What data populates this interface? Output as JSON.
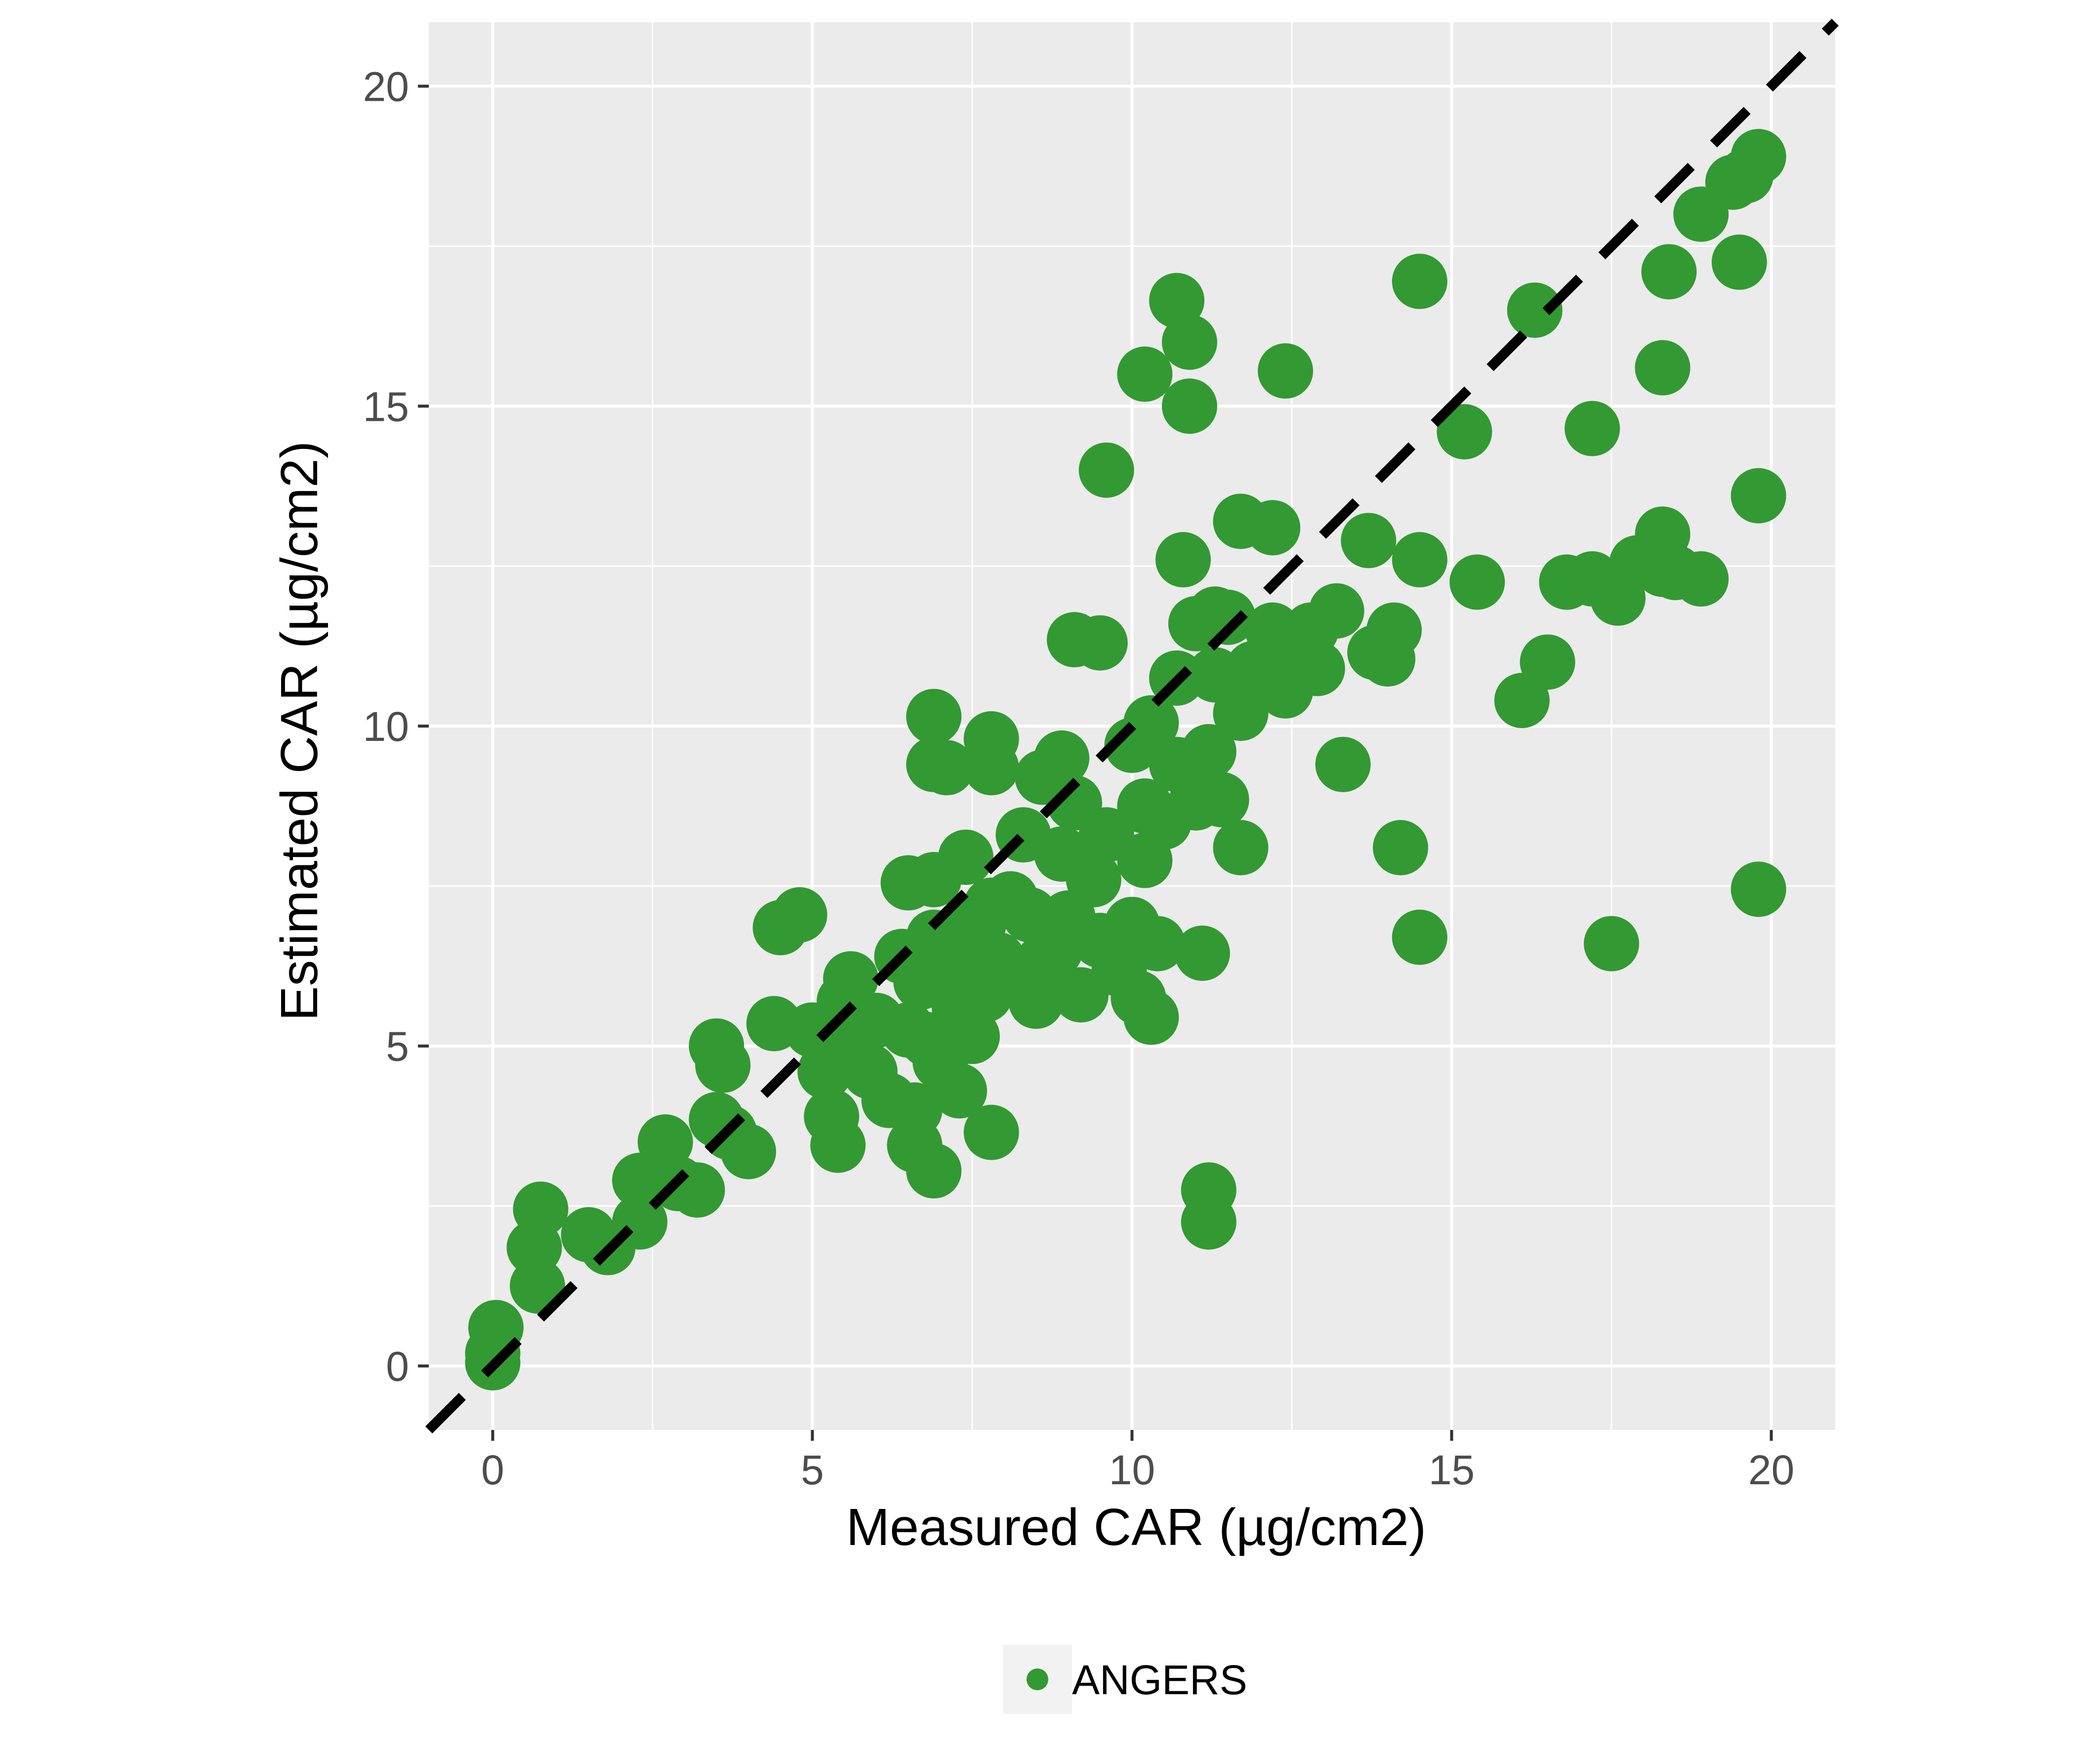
{
  "chart_data": {
    "type": "scatter",
    "title": "",
    "xlabel": "Measured CAR (µg/cm2)",
    "ylabel": "Estimated CAR (µg/cm2)",
    "xlim": [
      -1,
      21
    ],
    "ylim": [
      -1,
      21
    ],
    "xticks": [
      0,
      5,
      10,
      15,
      20
    ],
    "yticks": [
      0,
      5,
      10,
      15,
      20
    ],
    "grid": true,
    "legend_position": "bottom",
    "reference_line": {
      "style": "dashed",
      "slope": 1,
      "intercept": 0,
      "color": "#000000"
    },
    "colors": {
      "points": "#339933",
      "panel": "#ebebeb",
      "grid": "#ffffff",
      "legend_key": "#f2f2f2"
    },
    "series": [
      {
        "name": "ANGERS",
        "points": [
          [
            0.0,
            0.05
          ],
          [
            0.0,
            0.2
          ],
          [
            0.05,
            0.6
          ],
          [
            0.7,
            1.25
          ],
          [
            0.65,
            1.85
          ],
          [
            0.75,
            2.45
          ],
          [
            1.5,
            2.05
          ],
          [
            1.8,
            1.85
          ],
          [
            2.3,
            2.25
          ],
          [
            2.3,
            2.9
          ],
          [
            2.7,
            3.5
          ],
          [
            2.9,
            2.85
          ],
          [
            3.2,
            2.75
          ],
          [
            3.5,
            5.0
          ],
          [
            3.6,
            4.7
          ],
          [
            3.5,
            3.85
          ],
          [
            3.7,
            3.65
          ],
          [
            4.0,
            3.35
          ],
          [
            4.4,
            5.35
          ],
          [
            4.5,
            6.85
          ],
          [
            4.8,
            7.05
          ],
          [
            5.0,
            5.25
          ],
          [
            5.2,
            4.6
          ],
          [
            5.3,
            3.9
          ],
          [
            5.5,
            5.7
          ],
          [
            5.6,
            5.0
          ],
          [
            5.6,
            6.05
          ],
          [
            5.4,
            3.45
          ],
          [
            5.9,
            4.6
          ],
          [
            6.0,
            5.4
          ],
          [
            6.2,
            4.15
          ],
          [
            6.4,
            6.4
          ],
          [
            6.5,
            5.25
          ],
          [
            6.5,
            7.55
          ],
          [
            6.6,
            4.0
          ],
          [
            6.7,
            6.0
          ],
          [
            6.6,
            3.45
          ],
          [
            6.8,
            5.1
          ],
          [
            6.9,
            7.6
          ],
          [
            6.9,
            6.7
          ],
          [
            6.9,
            10.15
          ],
          [
            6.9,
            9.4
          ],
          [
            6.9,
            3.05
          ],
          [
            7.1,
            9.35
          ],
          [
            7.0,
            4.75
          ],
          [
            7.2,
            6.2
          ],
          [
            7.3,
            5.6
          ],
          [
            7.3,
            4.3
          ],
          [
            7.4,
            7.95
          ],
          [
            7.4,
            6.75
          ],
          [
            7.5,
            5.15
          ],
          [
            7.6,
            6.9
          ],
          [
            7.7,
            5.8
          ],
          [
            7.8,
            9.35
          ],
          [
            7.8,
            9.8
          ],
          [
            7.8,
            7.2
          ],
          [
            7.9,
            6.35
          ],
          [
            7.8,
            3.65
          ],
          [
            8.0,
            6.05
          ],
          [
            8.1,
            7.3
          ],
          [
            8.3,
            8.3
          ],
          [
            8.4,
            7.05
          ],
          [
            8.5,
            5.7
          ],
          [
            8.6,
            6.3
          ],
          [
            8.6,
            9.2
          ],
          [
            8.8,
            6.5
          ],
          [
            8.9,
            9.5
          ],
          [
            8.9,
            8.0
          ],
          [
            9.1,
            8.8
          ],
          [
            9.0,
            7.0
          ],
          [
            9.1,
            11.35
          ],
          [
            9.2,
            5.8
          ],
          [
            9.4,
            7.6
          ],
          [
            9.5,
            11.3
          ],
          [
            9.5,
            6.65
          ],
          [
            9.6,
            8.3
          ],
          [
            9.6,
            14.0
          ],
          [
            9.8,
            6.2
          ],
          [
            10.0,
            9.7
          ],
          [
            10.0,
            6.9
          ],
          [
            10.1,
            5.75
          ],
          [
            10.2,
            7.9
          ],
          [
            10.3,
            10.05
          ],
          [
            10.2,
            15.5
          ],
          [
            10.2,
            8.75
          ],
          [
            10.4,
            6.6
          ],
          [
            10.3,
            5.45
          ],
          [
            10.5,
            8.5
          ],
          [
            10.7,
            9.4
          ],
          [
            10.7,
            10.75
          ],
          [
            10.7,
            16.65
          ],
          [
            10.8,
            12.6
          ],
          [
            10.9,
            16.0
          ],
          [
            10.9,
            15.0
          ],
          [
            11.0,
            11.6
          ],
          [
            11.0,
            8.8
          ],
          [
            11.1,
            6.45
          ],
          [
            11.2,
            9.6
          ],
          [
            11.3,
            11.75
          ],
          [
            11.3,
            10.8
          ],
          [
            11.4,
            8.85
          ],
          [
            11.5,
            11.7
          ],
          [
            11.2,
            2.75
          ],
          [
            11.2,
            2.25
          ],
          [
            11.7,
            10.2
          ],
          [
            11.7,
            8.1
          ],
          [
            11.7,
            13.2
          ],
          [
            11.9,
            10.9
          ],
          [
            12.2,
            13.1
          ],
          [
            12.2,
            11.5
          ],
          [
            12.4,
            15.55
          ],
          [
            12.4,
            10.55
          ],
          [
            12.6,
            11.2
          ],
          [
            12.8,
            11.5
          ],
          [
            12.9,
            10.9
          ],
          [
            13.2,
            11.8
          ],
          [
            13.3,
            9.4
          ],
          [
            13.7,
            12.9
          ],
          [
            13.8,
            11.15
          ],
          [
            14.0,
            11.05
          ],
          [
            14.1,
            11.5
          ],
          [
            14.2,
            8.1
          ],
          [
            14.5,
            16.95
          ],
          [
            14.5,
            12.6
          ],
          [
            14.5,
            6.7
          ],
          [
            15.2,
            14.6
          ],
          [
            15.4,
            12.25
          ],
          [
            16.1,
            10.4
          ],
          [
            16.3,
            16.5
          ],
          [
            16.5,
            11.0
          ],
          [
            16.8,
            12.25
          ],
          [
            17.2,
            14.65
          ],
          [
            17.2,
            12.3
          ],
          [
            17.5,
            6.6
          ],
          [
            17.6,
            12.0
          ],
          [
            17.9,
            12.55
          ],
          [
            18.3,
            15.6
          ],
          [
            18.3,
            12.45
          ],
          [
            18.3,
            13.0
          ],
          [
            18.4,
            17.1
          ],
          [
            18.5,
            12.4
          ],
          [
            18.9,
            12.3
          ],
          [
            18.9,
            18.0
          ],
          [
            19.4,
            18.5
          ],
          [
            19.5,
            17.25
          ],
          [
            19.6,
            18.6
          ],
          [
            19.8,
            18.9
          ],
          [
            19.8,
            13.6
          ],
          [
            19.8,
            7.45
          ]
        ]
      }
    ]
  }
}
